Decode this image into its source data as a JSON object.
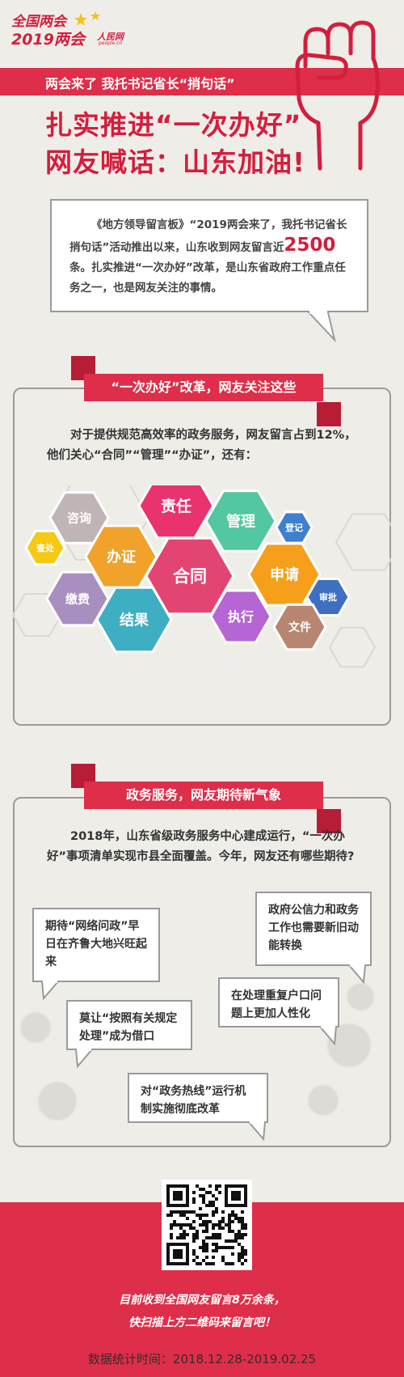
{
  "header": {
    "logo_main": "全国两会",
    "logo_year": "2019两会",
    "logo_people": "人民网",
    "logo_site": "people.cn",
    "ribbon": "两会来了  我托书记省长“捎句话”",
    "headline_1": "扎实推进“一次办好”",
    "headline_2": "网友喊话：山东加油!"
  },
  "intro": {
    "part1": "《地方领导留言板》“2019两会来了，我托书记省长捎句话”活动推出以来，山东收到网友留言近",
    "number": "2500",
    "part2": "条。扎实推进“一次办好”改革，是山东省政府工作重点任务之一，也是网友关注的事情。"
  },
  "section1": {
    "title": "“一次办好”改革，网友关注这些",
    "paragraph": "对于提供规范高效率的政务服务，网友留言占到12%，他们关心“合同”“管理”“办证”，还有："
  },
  "keywords": [
    {
      "label": "责任",
      "color": "#e8336e"
    },
    {
      "label": "管理",
      "color": "#52c7a1"
    },
    {
      "label": "咨询",
      "color": "#bfb4b6"
    },
    {
      "label": "登记",
      "color": "#3f7fcf"
    },
    {
      "label": "查处",
      "color": "#f5c915"
    },
    {
      "label": "办证",
      "color": "#f0a22a"
    },
    {
      "label": "合同",
      "color": "#e34573"
    },
    {
      "label": "申请",
      "color": "#f59f1a"
    },
    {
      "label": "缴费",
      "color": "#a88fc0"
    },
    {
      "label": "审批",
      "color": "#3f6fc0"
    },
    {
      "label": "结果",
      "color": "#3eaec2"
    },
    {
      "label": "执行",
      "color": "#b565d4"
    },
    {
      "label": "文件",
      "color": "#b88670"
    }
  ],
  "section2": {
    "title": "政务服务，网友期待新气象",
    "paragraph": "2018年，山东省级政务服务中心建成运行，“一次办好”事项清单实现市县全面覆盖。今年，网友还有哪些期待?"
  },
  "wishes": [
    "期待“网络问政”早日在齐鲁大地兴旺起来",
    "莫让“按照有关规定处理”成为借口",
    "对“政务热线”运行机制实施彻底改革",
    "政府公信力和政务工作也需要新旧动能转换",
    "在处理重复户口问题上更加人性化"
  ],
  "footer": {
    "line_1": "目前收到全国网友留言8万余条，",
    "line_2": "快扫描上方二维码来留言吧！",
    "date": "数据统计时间：2018.12.28-2019.02.25"
  },
  "colors": {
    "accent": "#de2e4a",
    "accent_dark": "#b71d35",
    "headline": "#d41e3c",
    "background": "#eeede8"
  }
}
